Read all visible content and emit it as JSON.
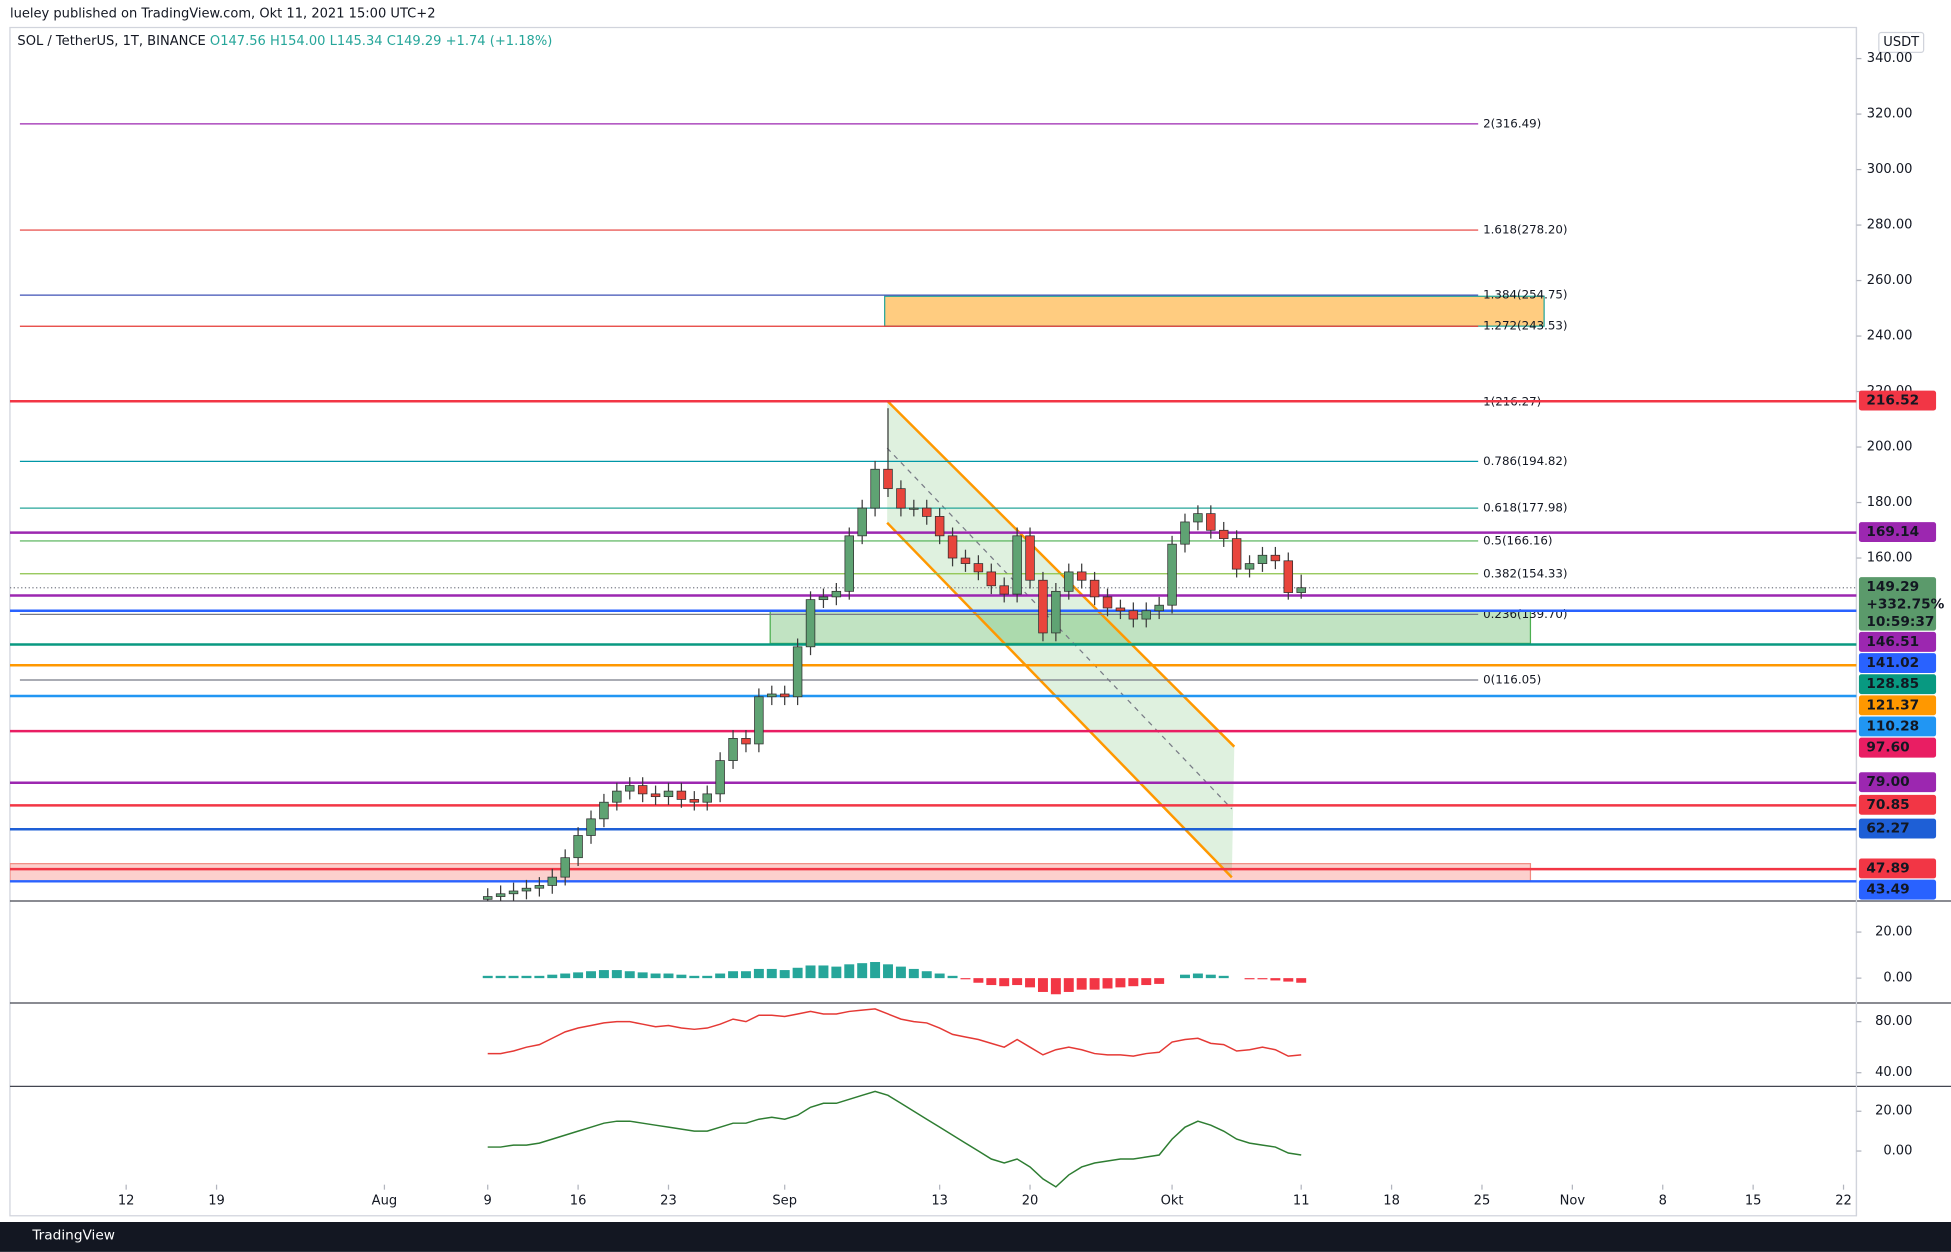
{
  "chart_data": [
    {
      "type": "candlestick",
      "header": "lueley published on TradingView.com, Okt 11, 2021 15:00 UTC+2",
      "symbol": "SOL / TetherUS, 1T, BINANCE",
      "ohlc_labels": [
        "O147.56",
        "H154.00",
        "L145.34",
        "C149.29"
      ],
      "change": "+1.74 (+1.18%)",
      "currency": "USDT",
      "brand": "TradingView",
      "up_color": "#5fa373",
      "down_color": "#e8453c",
      "xlim": [
        "2021-07-03",
        "2021-11-23"
      ],
      "xticks": [
        {
          "value": "2021-07-12",
          "label": "12"
        },
        {
          "value": "2021-07-19",
          "label": "19"
        },
        {
          "value": "2021-08-01",
          "label": "Aug"
        },
        {
          "value": "2021-08-09",
          "label": "9"
        },
        {
          "value": "2021-08-16",
          "label": "16"
        },
        {
          "value": "2021-08-23",
          "label": "23"
        },
        {
          "value": "2021-09-01",
          "label": "Sep"
        },
        {
          "value": "2021-09-13",
          "label": "13"
        },
        {
          "value": "2021-09-20",
          "label": "20"
        },
        {
          "value": "2021-10-01",
          "label": "Okt"
        },
        {
          "value": "2021-10-11",
          "label": "11"
        },
        {
          "value": "2021-10-18",
          "label": "18"
        },
        {
          "value": "2021-10-25",
          "label": "25"
        },
        {
          "value": "2021-11-01",
          "label": "Nov"
        },
        {
          "value": "2021-11-08",
          "label": "8"
        },
        {
          "value": "2021-11-15",
          "label": "15"
        },
        {
          "value": "2021-11-22",
          "label": "22"
        }
      ],
      "ylim": [
        36.4,
        351.2
      ],
      "yticks": [
        {
          "value": 340,
          "label": "340.00"
        },
        {
          "value": 320,
          "label": "320.00"
        },
        {
          "value": 300,
          "label": "300.00"
        },
        {
          "value": 280,
          "label": "280.00"
        },
        {
          "value": 260,
          "label": "260.00"
        },
        {
          "value": 240,
          "label": "240.00"
        },
        {
          "value": 220,
          "label": "220.00"
        },
        {
          "value": 200,
          "label": "200.00"
        },
        {
          "value": 180,
          "label": "180.00"
        },
        {
          "value": 160,
          "label": "160.00"
        }
      ],
      "x": [
        "2021-08-09",
        "2021-08-10",
        "2021-08-11",
        "2021-08-12",
        "2021-08-13",
        "2021-08-14",
        "2021-08-15",
        "2021-08-16",
        "2021-08-17",
        "2021-08-18",
        "2021-08-19",
        "2021-08-20",
        "2021-08-21",
        "2021-08-22",
        "2021-08-23",
        "2021-08-24",
        "2021-08-25",
        "2021-08-26",
        "2021-08-27",
        "2021-08-28",
        "2021-08-29",
        "2021-08-30",
        "2021-08-31",
        "2021-09-01",
        "2021-09-02",
        "2021-09-03",
        "2021-09-04",
        "2021-09-05",
        "2021-09-06",
        "2021-09-07",
        "2021-09-08",
        "2021-09-09",
        "2021-09-10",
        "2021-09-11",
        "2021-09-12",
        "2021-09-13",
        "2021-09-14",
        "2021-09-15",
        "2021-09-16",
        "2021-09-17",
        "2021-09-18",
        "2021-09-19",
        "2021-09-20",
        "2021-09-21",
        "2021-09-22",
        "2021-09-23",
        "2021-09-24",
        "2021-09-25",
        "2021-09-26",
        "2021-09-27",
        "2021-09-28",
        "2021-09-29",
        "2021-09-30",
        "2021-10-01",
        "2021-10-02",
        "2021-10-03",
        "2021-10-04",
        "2021-10-05",
        "2021-10-06",
        "2021-10-07",
        "2021-10-08",
        "2021-10-09",
        "2021-10-10",
        "2021-10-11"
      ],
      "open": [
        37,
        38,
        39,
        40,
        41,
        42,
        45,
        52,
        60,
        66,
        72,
        76,
        78,
        75,
        74,
        76,
        73,
        72,
        75,
        87,
        95,
        93,
        110,
        111,
        110,
        128,
        145,
        146,
        148,
        168,
        178,
        192,
        185,
        178,
        178,
        175,
        168,
        160,
        158,
        155,
        150,
        147,
        168,
        152,
        133,
        148,
        155,
        152,
        146,
        142,
        141,
        138,
        141,
        143,
        165,
        173,
        176,
        170,
        167,
        156,
        158,
        161,
        159,
        147.56
      ],
      "high": [
        41,
        42,
        43,
        44,
        45,
        48,
        55,
        63,
        69,
        75,
        79,
        81,
        81,
        78,
        79,
        79,
        76,
        78,
        90,
        98,
        98,
        113,
        114,
        114,
        131,
        148,
        149,
        151,
        171,
        181,
        195,
        214,
        188,
        181,
        181,
        178,
        171,
        163,
        161,
        158,
        153,
        171,
        171,
        155,
        151,
        158,
        158,
        155,
        149,
        145,
        144,
        144,
        146,
        168,
        176,
        179,
        179,
        173,
        170,
        161,
        164,
        164,
        162,
        154
      ],
      "low": [
        34,
        35,
        36,
        37,
        38,
        39,
        42,
        49,
        57,
        63,
        69,
        73,
        72,
        71,
        71,
        70,
        69,
        69,
        72,
        84,
        90,
        90,
        107,
        107,
        107,
        125,
        142,
        143,
        145,
        165,
        175,
        182,
        175,
        175,
        172,
        165,
        157,
        155,
        152,
        147,
        144,
        144,
        149,
        130,
        130,
        145,
        149,
        143,
        139,
        138,
        135,
        135,
        138,
        140,
        162,
        170,
        167,
        164,
        153,
        153,
        155,
        156,
        145,
        145.34
      ],
      "close": [
        38,
        39,
        40,
        41,
        42,
        45,
        52,
        60,
        66,
        72,
        76,
        78,
        75,
        74,
        76,
        73,
        72,
        75,
        87,
        95,
        93,
        110,
        111,
        110,
        128,
        145,
        146,
        148,
        168,
        178,
        192,
        185,
        178,
        178,
        175,
        168,
        160,
        158,
        155,
        150,
        147,
        168,
        152,
        133,
        148,
        155,
        152,
        146,
        142,
        141,
        138,
        141,
        143,
        165,
        173,
        176,
        170,
        167,
        156,
        158,
        161,
        159,
        147.56,
        149.29
      ],
      "fib_levels": [
        {
          "value": 316.49,
          "label": "2(316.49)",
          "color": "#9c27b0"
        },
        {
          "value": 278.2,
          "label": "1.618(278.20)",
          "color": "#e53935"
        },
        {
          "value": 254.75,
          "label": "1.384(254.75)",
          "color": "#3f51b5"
        },
        {
          "value": 243.53,
          "label": "1.272(243.53)",
          "color": "#e53935"
        },
        {
          "value": 216.27,
          "label": "1(216.27)",
          "color": "#e53935"
        },
        {
          "value": 194.82,
          "label": "0.786(194.82)",
          "color": "#0097a7"
        },
        {
          "value": 177.98,
          "label": "0.618(177.98)",
          "color": "#26a69a"
        },
        {
          "value": 166.16,
          "label": "0.5(166.16)",
          "color": "#4caf50"
        },
        {
          "value": 154.33,
          "label": "0.382(154.33)",
          "color": "#8bc34a"
        },
        {
          "value": 139.7,
          "label": "0.236(139.70)",
          "color": "#787b86"
        },
        {
          "value": 116.05,
          "label": "0(116.05)",
          "color": "#787b86"
        }
      ],
      "levels": [
        {
          "value": 216.52,
          "label": "216.52",
          "color": "#f23645"
        },
        {
          "value": 169.14,
          "label": "169.14",
          "color": "#9c27b0"
        },
        {
          "value": 146.51,
          "label": "146.51",
          "color": "#9c27b0"
        },
        {
          "value": 141.02,
          "label": "141.02",
          "color": "#2962ff"
        },
        {
          "value": 128.85,
          "label": "128.85",
          "color": "#089981"
        },
        {
          "value": 121.37,
          "label": "121.37",
          "color": "#ff9800"
        },
        {
          "value": 110.28,
          "label": "110.28",
          "color": "#2196f3"
        },
        {
          "value": 97.6,
          "label": "97.60",
          "color": "#e91e63"
        },
        {
          "value": 79,
          "label": "79.00",
          "color": "#9c27b0"
        },
        {
          "value": 70.85,
          "label": "70.85",
          "color": "#f23645"
        },
        {
          "value": 62.27,
          "label": "62.27",
          "color": "#1e5fd6"
        },
        {
          "value": 47.89,
          "label": "47.89",
          "color": "#f23645"
        },
        {
          "value": 43.49,
          "label": "43.49",
          "color": "#2962ff"
        }
      ],
      "last": {
        "value": 149.29,
        "label": "149.29",
        "change": "+332.75%",
        "countdown": "10:59:37",
        "color": "#5b9a6b"
      }
    },
    {
      "type": "bar",
      "color_up": "#26a69a",
      "color_down": "#f23645",
      "ylim": [
        -10.8,
        33.5
      ],
      "yticks": [
        {
          "value": 20,
          "label": "20.00"
        },
        {
          "value": 0,
          "label": "0.00"
        }
      ],
      "values": [
        1,
        1,
        1,
        1,
        1,
        1.5,
        2,
        2.5,
        3,
        3.5,
        3.5,
        3,
        2.5,
        2,
        2,
        1.5,
        1,
        1,
        2,
        3,
        3,
        4,
        4,
        3.5,
        4.5,
        5.5,
        5.5,
        5,
        6,
        6.5,
        7,
        6,
        5,
        4,
        3,
        2,
        1,
        -0.5,
        -2,
        -3,
        -3.5,
        -3,
        -4,
        -6,
        -7,
        -6,
        -5,
        -5,
        -4.5,
        -4,
        -3.5,
        -3,
        -2.5,
        0,
        1.5,
        2,
        1.5,
        1,
        0,
        -0.5,
        -0.5,
        -1,
        -1.5,
        -2
      ]
    },
    {
      "type": "line",
      "color": "#e53935",
      "ylim": [
        29.3,
        94.6
      ],
      "yticks": [
        {
          "value": 80,
          "label": "80.00"
        },
        {
          "value": 40,
          "label": "40.00"
        }
      ],
      "values": [
        55,
        55,
        57,
        60,
        62,
        67,
        72,
        75,
        77,
        79,
        80,
        80,
        78,
        76,
        77,
        75,
        74,
        75,
        78,
        82,
        80,
        85,
        85,
        84,
        86,
        88,
        86,
        86,
        88,
        89,
        90,
        86,
        82,
        80,
        79,
        75,
        70,
        68,
        66,
        63,
        60,
        66,
        60,
        54,
        58,
        60,
        58,
        55,
        54,
        54,
        53,
        55,
        56,
        64,
        66,
        67,
        63,
        62,
        57,
        58,
        60,
        58,
        53,
        54
      ]
    },
    {
      "type": "line",
      "color": "#2e7d32",
      "ylim": [
        -16.9,
        32.5
      ],
      "yticks": [
        {
          "value": 20,
          "label": "20.00"
        },
        {
          "value": 0,
          "label": "0.00"
        }
      ],
      "values": [
        2,
        2,
        3,
        3,
        4,
        6,
        8,
        10,
        12,
        14,
        15,
        15,
        14,
        13,
        12,
        11,
        10,
        10,
        12,
        14,
        14,
        16,
        17,
        16,
        18,
        22,
        24,
        24,
        26,
        28,
        30,
        28,
        24,
        20,
        16,
        12,
        8,
        4,
        0,
        -4,
        -6,
        -4,
        -8,
        -14,
        -18,
        -12,
        -8,
        -6,
        -5,
        -4,
        -4,
        -3,
        -2,
        6,
        12,
        15,
        13,
        10,
        6,
        4,
        3,
        2,
        -1,
        -2
      ]
    }
  ]
}
